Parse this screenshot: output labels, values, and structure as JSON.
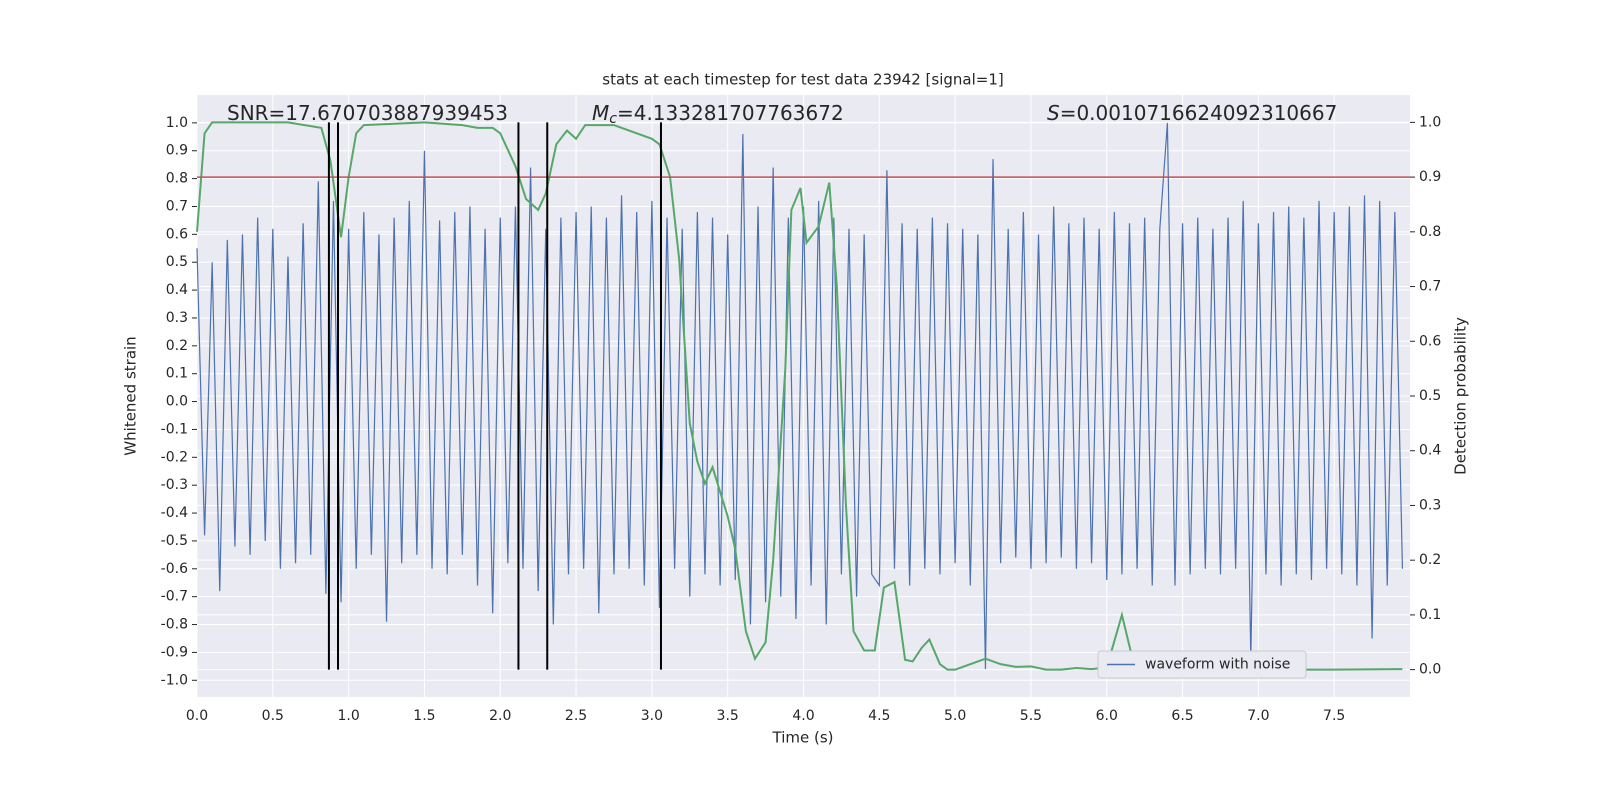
{
  "chart_data": {
    "type": "line",
    "title": "stats at each timestep for test data 23942 [signal=1]",
    "xlabel": "Time (s)",
    "ylabel": "Whitened strain",
    "y2label": "Detection probability",
    "xlim": [
      0,
      8.0
    ],
    "ylim": [
      -1.06,
      1.1
    ],
    "y2lim": [
      -0.05,
      1.05
    ],
    "xticks": [
      {
        "value": 0,
        "label": "0.0"
      },
      0.5,
      {
        "value": 1,
        "label": "1.0"
      },
      1.5,
      {
        "value": 2,
        "label": "2.0"
      },
      2.5,
      {
        "value": 3,
        "label": "3.0"
      },
      3.5,
      {
        "value": 4,
        "label": "4.0"
      },
      4.5,
      {
        "value": 5,
        "label": "5.0"
      },
      5.5,
      {
        "value": 6,
        "label": "6.0"
      },
      6.5,
      {
        "value": 7,
        "label": "7.0"
      },
      7.5
    ],
    "yticks": [
      {
        "value": -1,
        "label": "-1.0"
      },
      -0.9,
      -0.8,
      -0.7,
      -0.6,
      -0.5,
      -0.4,
      -0.3,
      -0.2,
      -0.1,
      {
        "value": 0,
        "label": "0.0"
      },
      0.1,
      0.2,
      0.3,
      0.4,
      0.5,
      0.6,
      0.7,
      0.8,
      0.9,
      {
        "value": 1,
        "label": "1.0"
      }
    ],
    "y2ticks": [
      {
        "value": 0,
        "label": "0.0"
      },
      0.1,
      0.2,
      0.3,
      0.4,
      0.5,
      0.6,
      0.7,
      0.8,
      0.9,
      {
        "value": 1,
        "label": "1.0"
      }
    ],
    "grid": true,
    "legend": "lower right",
    "series": [
      {
        "name": "waveform with noise",
        "color": "#4c72b0",
        "x": [
          0,
          0.05,
          0.1,
          0.15,
          0.2,
          0.25,
          0.3,
          0.35,
          0.4,
          0.45,
          0.5,
          0.55,
          0.6,
          0.65,
          0.7,
          0.75,
          0.8,
          0.85,
          0.9,
          0.95,
          1.0,
          1.05,
          1.1,
          1.15,
          1.2,
          1.25,
          1.3,
          1.35,
          1.4,
          1.45,
          1.5,
          1.55,
          1.6,
          1.65,
          1.7,
          1.75,
          1.8,
          1.85,
          1.9,
          1.95,
          2.0,
          2.05,
          2.1,
          2.15,
          2.2,
          2.25,
          2.3,
          2.35,
          2.4,
          2.45,
          2.5,
          2.55,
          2.6,
          2.65,
          2.7,
          2.75,
          2.8,
          2.85,
          2.9,
          2.95,
          3.0,
          3.05,
          3.1,
          3.15,
          3.2,
          3.25,
          3.3,
          3.35,
          3.4,
          3.45,
          3.5,
          3.55,
          3.6,
          3.65,
          3.7,
          3.75,
          3.8,
          3.85,
          3.9,
          3.95,
          4.0,
          4.05,
          4.1,
          4.15,
          4.2,
          4.25,
          4.3,
          4.35,
          4.4,
          4.45,
          4.5,
          4.55,
          4.6,
          4.65,
          4.7,
          4.75,
          4.8,
          4.85,
          4.9,
          4.95,
          5.0,
          5.05,
          5.1,
          5.15,
          5.2,
          5.25,
          5.3,
          5.35,
          5.4,
          5.45,
          5.5,
          5.55,
          5.6,
          5.65,
          5.7,
          5.75,
          5.8,
          5.85,
          5.9,
          5.95,
          6.0,
          6.05,
          6.1,
          6.15,
          6.2,
          6.25,
          6.3,
          6.35,
          6.4,
          6.45,
          6.5,
          6.55,
          6.6,
          6.65,
          6.7,
          6.75,
          6.8,
          6.85,
          6.9,
          6.95,
          7.0,
          7.05,
          7.1,
          7.15,
          7.2,
          7.25,
          7.3,
          7.35,
          7.4,
          7.45,
          7.5,
          7.55,
          7.6,
          7.65,
          7.7,
          7.75,
          7.8,
          7.85,
          7.9,
          7.95
        ],
        "values": [
          0.55,
          -0.48,
          0.5,
          -0.68,
          0.58,
          -0.52,
          0.6,
          -0.55,
          0.66,
          -0.5,
          0.62,
          -0.6,
          0.52,
          -0.58,
          0.64,
          -0.55,
          0.79,
          -0.69,
          0.72,
          -0.72,
          0.62,
          -0.6,
          0.68,
          -0.55,
          0.6,
          -0.79,
          0.66,
          -0.58,
          0.72,
          -0.55,
          0.9,
          -0.6,
          0.65,
          -0.62,
          0.68,
          -0.55,
          0.7,
          -0.66,
          0.62,
          -0.76,
          0.66,
          -0.58,
          0.7,
          -0.6,
          0.84,
          -0.68,
          0.62,
          -0.8,
          0.66,
          -0.62,
          0.68,
          -0.6,
          0.7,
          -0.76,
          0.66,
          -0.62,
          0.74,
          -0.6,
          0.68,
          -0.66,
          0.72,
          -0.74,
          0.66,
          -0.6,
          0.62,
          -0.7,
          0.68,
          -0.62,
          0.66,
          -0.66,
          0.6,
          -0.64,
          0.96,
          -0.8,
          0.7,
          -0.72,
          0.84,
          -0.7,
          0.66,
          -0.78,
          0.7,
          -0.66,
          0.72,
          -0.8,
          0.66,
          -0.62,
          0.62,
          -0.7,
          0.6,
          -0.62,
          -0.66,
          0.83,
          -0.6,
          0.64,
          -0.66,
          0.62,
          -0.6,
          0.66,
          -0.62,
          0.64,
          -0.58,
          0.62,
          -0.66,
          0.6,
          -0.96,
          0.87,
          -0.58,
          0.62,
          -0.56,
          0.68,
          -0.6,
          0.6,
          -0.58,
          0.7,
          -0.56,
          0.64,
          -0.6,
          0.66,
          -0.58,
          0.62,
          -0.64,
          0.68,
          -0.62,
          0.64,
          -0.6,
          0.66,
          -0.66,
          0.62,
          1.0,
          -0.66,
          0.64,
          -0.62,
          0.66,
          -0.6,
          0.62,
          -0.62,
          0.66,
          -0.6,
          0.72,
          -0.92,
          0.64,
          -0.62,
          0.68,
          -0.66,
          0.7,
          -0.62,
          0.66,
          -0.64,
          0.72,
          -0.6,
          0.68,
          -0.62,
          0.7,
          -0.66,
          0.74,
          -0.85,
          0.72,
          -0.66,
          0.68,
          -0.6
        ]
      },
      {
        "color": "#55a868",
        "axis": "y2",
        "x": [
          0,
          0.05,
          0.1,
          0.3,
          0.6,
          0.82,
          0.88,
          0.95,
          1.0,
          1.05,
          1.1,
          1.5,
          1.75,
          1.85,
          1.95,
          2.0,
          2.1,
          2.17,
          2.25,
          2.3,
          2.37,
          2.44,
          2.5,
          2.56,
          2.75,
          2.9,
          3.0,
          3.05,
          3.12,
          3.18,
          3.25,
          3.3,
          3.35,
          3.4,
          3.5,
          3.55,
          3.62,
          3.68,
          3.75,
          3.8,
          3.88,
          3.92,
          3.98,
          4.02,
          4.1,
          4.17,
          4.22,
          4.28,
          4.33,
          4.4,
          4.47,
          4.53,
          4.6,
          4.67,
          4.72,
          4.78,
          4.83,
          4.9,
          4.95,
          5.0,
          5.1,
          5.2,
          5.3,
          5.4,
          5.5,
          5.6,
          5.7,
          5.8,
          5.9,
          6.0,
          6.1,
          6.17,
          6.22,
          6.28,
          6.35,
          6.42,
          6.5,
          6.6,
          6.7,
          6.8,
          6.9,
          7.0,
          7.5,
          7.95
        ],
        "values": [
          0.8,
          0.98,
          1.0,
          1.0,
          1.0,
          0.99,
          0.93,
          0.79,
          0.9,
          0.98,
          0.995,
          1.0,
          0.995,
          0.99,
          0.99,
          0.98,
          0.92,
          0.86,
          0.84,
          0.87,
          0.96,
          0.985,
          0.97,
          0.995,
          0.995,
          0.98,
          0.97,
          0.96,
          0.9,
          0.75,
          0.45,
          0.38,
          0.34,
          0.37,
          0.28,
          0.22,
          0.07,
          0.02,
          0.05,
          0.2,
          0.55,
          0.84,
          0.88,
          0.78,
          0.81,
          0.89,
          0.7,
          0.3,
          0.07,
          0.035,
          0.035,
          0.15,
          0.16,
          0.018,
          0.015,
          0.04,
          0.055,
          0.01,
          0.0,
          0.0,
          0.01,
          0.02,
          0.01,
          0.005,
          0.006,
          0.0,
          0.0,
          0.003,
          0.001,
          0.004,
          0.1,
          0.02,
          0.003,
          0.004,
          0.025,
          0.013,
          0.001,
          0.002,
          0.0,
          0.002,
          0.001,
          0.0,
          0.0,
          0.001
        ]
      }
    ],
    "hlines": [
      {
        "value": 0.9,
        "axis": "y2",
        "color": "#c44e52"
      }
    ],
    "vlines": {
      "x": [
        0.87,
        0.93,
        2.12,
        2.31,
        3.06
      ],
      "axis": "y2",
      "range": [
        0,
        1
      ],
      "color": "#000000"
    },
    "annotations": [
      [
        "SNR=17.670703887939453"
      ],
      [
        "M",
        "c",
        "=4.133281707763672"
      ],
      [
        "S",
        "=0.0010716624092310667"
      ]
    ]
  }
}
